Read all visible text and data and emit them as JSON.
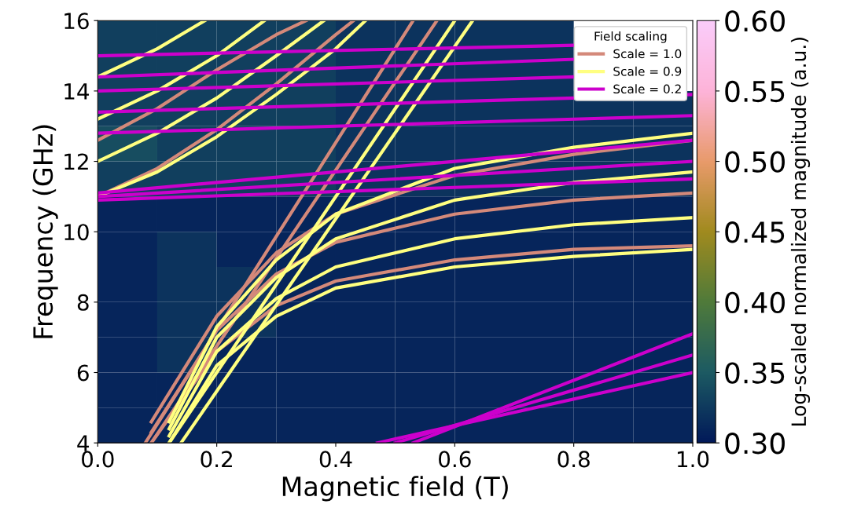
{
  "chart_data": {
    "type": "heatmap",
    "xlabel": "Magnetic field (T)",
    "ylabel": "Frequency (GHz)",
    "clabel": "Log-scaled normalized magnitude (a.u.)",
    "legend_title": "Field scaling",
    "legend": "top right",
    "grid": false,
    "x": [
      0.05,
      0.15,
      0.25,
      0.35,
      0.45,
      0.55,
      0.65,
      0.75,
      0.85,
      0.95
    ],
    "y": [
      4.5,
      5.5,
      6.5,
      7.5,
      8.5,
      9.5,
      10.5,
      11.5,
      12.5,
      13.5,
      14.5,
      15.5
    ],
    "cells": [
      [
        0.31,
        0.31,
        0.31,
        0.31,
        0.31,
        0.31,
        0.31,
        0.31,
        0.31,
        0.31
      ],
      [
        0.31,
        0.31,
        0.31,
        0.31,
        0.31,
        0.31,
        0.31,
        0.31,
        0.31,
        0.31
      ],
      [
        0.31,
        0.32,
        0.31,
        0.31,
        0.31,
        0.31,
        0.31,
        0.31,
        0.31,
        0.31
      ],
      [
        0.31,
        0.32,
        0.32,
        0.31,
        0.31,
        0.31,
        0.31,
        0.31,
        0.31,
        0.31
      ],
      [
        0.31,
        0.32,
        0.32,
        0.31,
        0.31,
        0.31,
        0.31,
        0.31,
        0.31,
        0.31
      ],
      [
        0.31,
        0.32,
        0.31,
        0.31,
        0.31,
        0.31,
        0.31,
        0.31,
        0.31,
        0.31
      ],
      [
        0.31,
        0.31,
        0.31,
        0.31,
        0.31,
        0.31,
        0.31,
        0.31,
        0.31,
        0.31
      ],
      [
        0.33,
        0.33,
        0.33,
        0.33,
        0.32,
        0.32,
        0.32,
        0.32,
        0.32,
        0.32
      ],
      [
        0.34,
        0.33,
        0.33,
        0.33,
        0.32,
        0.32,
        0.32,
        0.32,
        0.32,
        0.32
      ],
      [
        0.33,
        0.33,
        0.33,
        0.33,
        0.32,
        0.32,
        0.32,
        0.32,
        0.32,
        0.32
      ],
      [
        0.33,
        0.33,
        0.33,
        0.33,
        0.32,
        0.32,
        0.32,
        0.32,
        null,
        null
      ],
      [
        0.33,
        0.33,
        0.33,
        0.33,
        0.32,
        0.32,
        0.32,
        0.32,
        null,
        null
      ]
    ],
    "clim": [
      0.3,
      0.6
    ],
    "cticks": [
      {
        "value": 0.3,
        "label": "0.30"
      },
      {
        "value": 0.35,
        "label": "0.35"
      },
      {
        "value": 0.4,
        "label": "0.40"
      },
      {
        "value": 0.45,
        "label": "0.45"
      },
      {
        "value": 0.5,
        "label": "0.50"
      },
      {
        "value": 0.55,
        "label": "0.55"
      },
      {
        "value": 0.6,
        "label": "0.60"
      }
    ],
    "xlim": [
      0,
      1
    ],
    "xticks": [
      {
        "value": 0,
        "label": "0.0"
      },
      {
        "value": 0.2,
        "label": "0.2"
      },
      {
        "value": 0.4,
        "label": "0.4"
      },
      {
        "value": 0.6,
        "label": "0.6"
      },
      {
        "value": 0.8,
        "label": "0.8"
      },
      {
        "value": 1,
        "label": "1.0"
      }
    ],
    "ylim": [
      4,
      16
    ],
    "yticks": [
      4,
      6,
      8,
      10,
      12,
      14,
      16
    ],
    "series": [
      {
        "name": "Scale = 1.0",
        "type": "line",
        "color": "#d4897a",
        "x": [
          0.09,
          0.2,
          0.3,
          0.4,
          0.6,
          0.8,
          1.0
        ],
        "values": [
          4,
          6.6,
          7.9,
          8.6,
          9.2,
          9.5,
          9.6
        ]
      },
      {
        "type": "line",
        "color": "#d4897a",
        "x": [
          0.09,
          0.2,
          0.3,
          0.4,
          0.6,
          0.8,
          1.0
        ],
        "values": [
          4.3,
          7.2,
          8.8,
          9.7,
          10.5,
          10.9,
          11.1
        ]
      },
      {
        "type": "line",
        "color": "#d4897a",
        "x": [
          0.09,
          0.2,
          0.3,
          0.4,
          0.6,
          0.8,
          1.0
        ],
        "values": [
          4.6,
          7.6,
          9.4,
          10.5,
          11.6,
          12.2,
          12.6
        ]
      },
      {
        "type": "line",
        "color": "#d4897a",
        "x": [
          0,
          0.1,
          0.2,
          0.3,
          0.4,
          0.43
        ],
        "values": [
          11.0,
          11.8,
          12.9,
          14.2,
          15.6,
          16.0
        ]
      },
      {
        "type": "line",
        "color": "#d4897a",
        "x": [
          0,
          0.1,
          0.2,
          0.3,
          0.35
        ],
        "values": [
          12.6,
          13.5,
          14.6,
          15.6,
          16.0
        ]
      },
      {
        "type": "line",
        "color": "#d4897a",
        "x": [
          0.09,
          0.57
        ],
        "values": [
          4,
          16
        ]
      },
      {
        "type": "line",
        "color": "#d4897a",
        "x": [
          0.08,
          0.53
        ],
        "values": [
          4,
          16
        ]
      },
      {
        "name": "Scale = 0.9",
        "type": "line",
        "color": "#ffff80",
        "x": [
          0.12,
          0.2,
          0.3,
          0.4,
          0.6,
          0.8,
          1.0
        ],
        "values": [
          4,
          6.2,
          7.6,
          8.4,
          9.0,
          9.3,
          9.5
        ]
      },
      {
        "type": "line",
        "color": "#ffff80",
        "x": [
          0.12,
          0.2,
          0.3,
          0.4,
          0.6,
          0.8,
          1.0
        ],
        "values": [
          4.2,
          6.6,
          8.1,
          9.0,
          9.8,
          10.2,
          10.4
        ]
      },
      {
        "type": "line",
        "color": "#ffff80",
        "x": [
          0.12,
          0.2,
          0.3,
          0.4,
          0.6,
          0.8,
          1.0
        ],
        "values": [
          4.4,
          7.0,
          8.7,
          9.8,
          10.9,
          11.4,
          11.7
        ]
      },
      {
        "type": "line",
        "color": "#ffff80",
        "x": [
          0.12,
          0.2,
          0.3,
          0.4,
          0.6,
          0.8,
          1.0
        ],
        "values": [
          4.6,
          7.3,
          9.2,
          10.5,
          11.8,
          12.4,
          12.8
        ]
      },
      {
        "type": "line",
        "color": "#ffff80",
        "x": [
          0,
          0.1,
          0.2,
          0.3,
          0.4,
          0.45
        ],
        "values": [
          11.0,
          11.7,
          12.7,
          13.9,
          15.2,
          16.0
        ]
      },
      {
        "type": "line",
        "color": "#ffff80",
        "x": [
          0,
          0.1,
          0.2,
          0.3,
          0.38
        ],
        "values": [
          12.0,
          12.8,
          13.8,
          15.0,
          16.0
        ]
      },
      {
        "type": "line",
        "color": "#ffff80",
        "x": [
          0,
          0.1,
          0.2,
          0.28
        ],
        "values": [
          13.2,
          14.0,
          15.0,
          16.0
        ]
      },
      {
        "type": "line",
        "color": "#ffff80",
        "x": [
          0,
          0.1,
          0.18
        ],
        "values": [
          14.4,
          15.2,
          16.0
        ]
      },
      {
        "type": "line",
        "color": "#ffff80",
        "x": [
          0.12,
          0.6
        ],
        "values": [
          4,
          16
        ]
      },
      {
        "type": "line",
        "color": "#ffff80",
        "x": [
          0.14,
          0.63
        ],
        "values": [
          4,
          16
        ]
      },
      {
        "name": "Scale = 0.2",
        "type": "line",
        "color": "#cc00cc",
        "x": [
          0,
          1
        ],
        "values": [
          10.9,
          11.5
        ]
      },
      {
        "type": "line",
        "color": "#cc00cc",
        "x": [
          0,
          1
        ],
        "values": [
          11.0,
          12.0
        ]
      },
      {
        "type": "line",
        "color": "#cc00cc",
        "x": [
          0,
          1
        ],
        "values": [
          11.1,
          12.6
        ]
      },
      {
        "type": "line",
        "color": "#cc00cc",
        "x": [
          0,
          1
        ],
        "values": [
          12.8,
          13.3
        ]
      },
      {
        "type": "line",
        "color": "#cc00cc",
        "x": [
          0,
          1
        ],
        "values": [
          13.4,
          13.9
        ]
      },
      {
        "type": "line",
        "color": "#cc00cc",
        "x": [
          0,
          0.8
        ],
        "values": [
          14.0,
          14.4
        ]
      },
      {
        "type": "line",
        "color": "#cc00cc",
        "x": [
          0,
          0.8
        ],
        "values": [
          14.4,
          14.9
        ]
      },
      {
        "type": "line",
        "color": "#cc00cc",
        "x": [
          0,
          0.8
        ],
        "values": [
          15.0,
          15.3
        ]
      },
      {
        "type": "line",
        "color": "#cc00cc",
        "x": [
          0.47,
          1.0
        ],
        "values": [
          4,
          6.0
        ]
      },
      {
        "type": "line",
        "color": "#cc00cc",
        "x": [
          0.5,
          1.0
        ],
        "values": [
          4,
          6.5
        ]
      },
      {
        "type": "line",
        "color": "#cc00cc",
        "x": [
          0.53,
          1.0
        ],
        "values": [
          4,
          7.1
        ]
      }
    ]
  }
}
